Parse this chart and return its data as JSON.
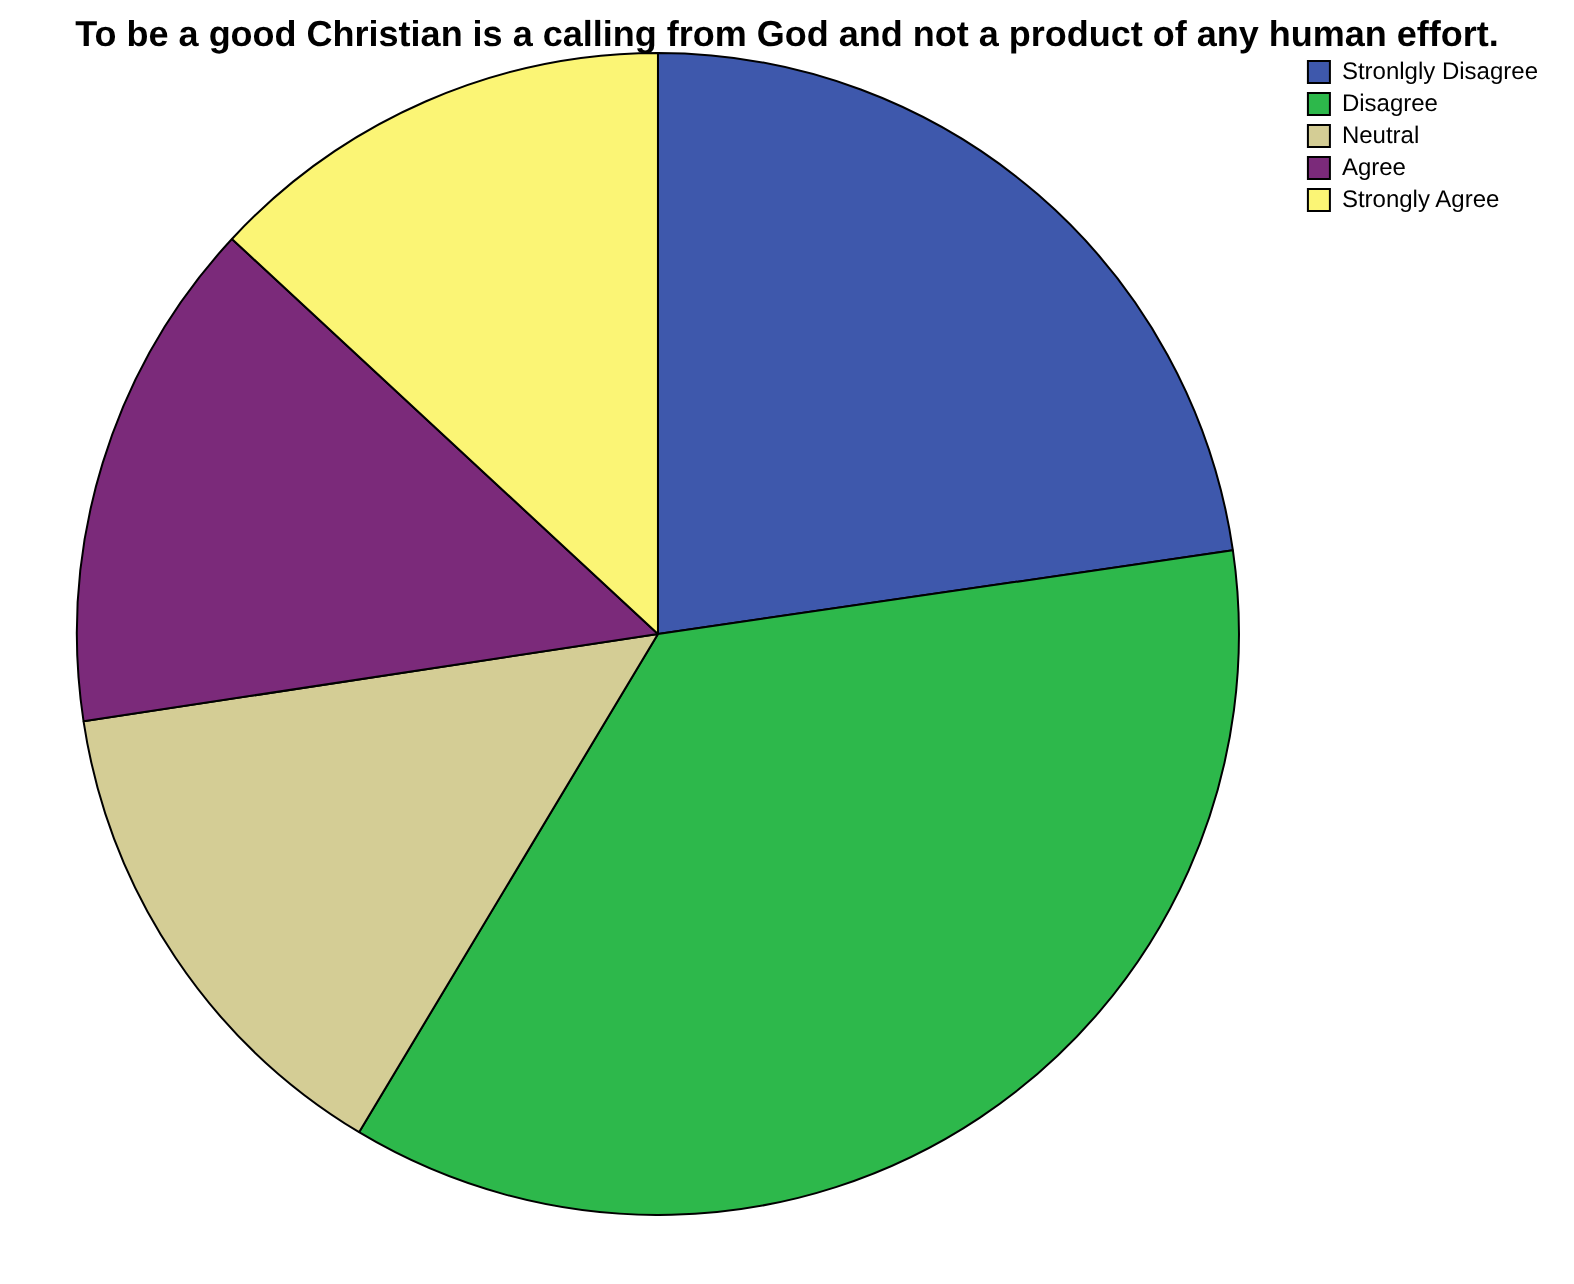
{
  "chart_data": {
    "type": "pie",
    "title": "To be a good Christian is a calling from God and not a product of any human effort.",
    "categories": [
      "Stronlgly Disagree",
      "Disagree",
      "Neutral",
      "Agree",
      "Strongly Agree"
    ],
    "values": [
      22.7,
      35.9,
      14.0,
      14.3,
      13.1
    ],
    "colors": [
      "#3e58ac",
      "#2db84b",
      "#d4cd95",
      "#7b2a7a",
      "#fbf575"
    ],
    "legend": "top right"
  }
}
